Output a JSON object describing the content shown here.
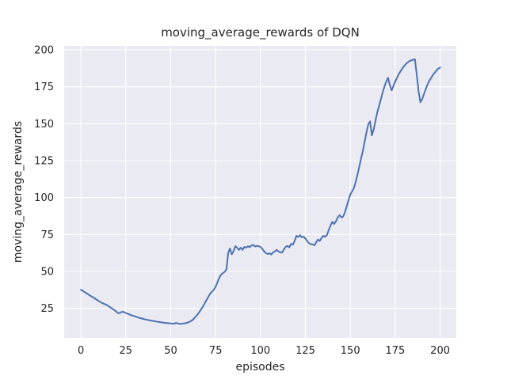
{
  "chart_data": {
    "type": "line",
    "title": "moving_average_rewards of DQN",
    "xlabel": "episodes",
    "ylabel": "moving_average_rewards",
    "x_ticks": [
      0,
      25,
      50,
      75,
      100,
      125,
      150,
      175,
      200
    ],
    "y_ticks": [
      25,
      50,
      75,
      100,
      125,
      150,
      175,
      200
    ],
    "xlim": [
      -9.3,
      209.0
    ],
    "ylim": [
      5.0,
      202.7
    ],
    "grid": true,
    "legend_position": "none",
    "style": {
      "line_color": "#4c72b0",
      "plot_bg": "#eaeaf2",
      "grid_color": "#ffffff",
      "text_color": "#262626",
      "fig_bg": "#ffffff"
    },
    "series": [
      {
        "name": "DQN moving average rewards",
        "x": [
          0,
          1,
          2,
          3,
          4,
          5,
          6,
          7,
          8,
          9,
          10,
          11,
          12,
          13,
          14,
          15,
          16,
          17,
          18,
          19,
          20,
          21,
          22,
          23,
          24,
          25,
          26,
          27,
          28,
          29,
          30,
          31,
          32,
          33,
          34,
          35,
          36,
          37,
          38,
          39,
          40,
          41,
          42,
          43,
          44,
          45,
          46,
          47,
          48,
          49,
          50,
          51,
          52,
          53,
          54,
          55,
          56,
          57,
          58,
          59,
          60,
          61,
          62,
          63,
          64,
          65,
          66,
          67,
          68,
          69,
          70,
          71,
          72,
          73,
          74,
          75,
          76,
          77,
          78,
          79,
          80,
          81,
          82,
          83,
          84,
          85,
          86,
          87,
          88,
          89,
          90,
          91,
          92,
          93,
          94,
          95,
          96,
          97,
          98,
          99,
          100,
          101,
          102,
          103,
          104,
          105,
          106,
          107,
          108,
          109,
          110,
          111,
          112,
          113,
          114,
          115,
          116,
          117,
          118,
          119,
          120,
          121,
          122,
          123,
          124,
          125,
          126,
          127,
          128,
          129,
          130,
          131,
          132,
          133,
          134,
          135,
          136,
          137,
          138,
          139,
          140,
          141,
          142,
          143,
          144,
          145,
          146,
          147,
          148,
          149,
          150,
          151,
          152,
          153,
          154,
          155,
          156,
          157,
          158,
          159,
          160,
          161,
          162,
          163,
          164,
          165,
          166,
          167,
          168,
          169,
          170,
          171,
          172,
          173,
          174,
          175,
          176,
          177,
          178,
          179,
          180,
          181,
          182,
          183,
          184,
          185,
          186,
          187,
          188,
          189,
          190,
          191,
          192,
          193,
          194,
          195,
          196,
          197,
          198,
          199,
          200
        ],
        "y": [
          37.6,
          36.9,
          36.1,
          35.3,
          34.5,
          33.7,
          33.0,
          32.3,
          31.5,
          30.7,
          29.9,
          29.2,
          28.5,
          28.0,
          27.5,
          26.8,
          26.0,
          25.2,
          24.4,
          23.5,
          22.5,
          21.6,
          22.2,
          22.7,
          22.4,
          21.9,
          21.4,
          20.9,
          20.4,
          20.0,
          19.6,
          19.2,
          18.8,
          18.4,
          18.1,
          17.8,
          17.5,
          17.2,
          17.0,
          16.7,
          16.5,
          16.3,
          16.1,
          15.9,
          15.7,
          15.5,
          15.3,
          15.1,
          15.0,
          14.9,
          14.8,
          14.7,
          14.6,
          15.1,
          14.8,
          14.5,
          14.6,
          14.7,
          14.9,
          15.2,
          15.6,
          16.2,
          17.0,
          18.1,
          19.4,
          20.9,
          22.6,
          24.4,
          26.4,
          28.5,
          30.7,
          32.9,
          34.9,
          36.3,
          37.6,
          39.6,
          42.6,
          45.5,
          47.7,
          48.8,
          49.7,
          51.2,
          62.4,
          65.6,
          61.6,
          63.7,
          67.1,
          66.0,
          64.6,
          66.1,
          64.6,
          66.6,
          66.1,
          67.1,
          66.4,
          67.6,
          67.9,
          66.9,
          67.3,
          67.1,
          66.6,
          65.3,
          63.6,
          62.4,
          61.8,
          62.3,
          61.4,
          62.9,
          63.6,
          64.6,
          63.5,
          63.0,
          62.7,
          64.9,
          66.6,
          67.3,
          66.3,
          68.6,
          68.1,
          70.6,
          74.1,
          73.3,
          74.6,
          73.1,
          73.6,
          72.3,
          70.6,
          69.1,
          68.5,
          68.3,
          67.7,
          69.6,
          71.6,
          70.7,
          72.6,
          74.1,
          73.4,
          74.6,
          78.1,
          81.1,
          83.6,
          82.1,
          83.9,
          86.6,
          88.1,
          86.6,
          87.1,
          90.1,
          94.1,
          98.1,
          102.1,
          104.2,
          106.6,
          110.6,
          115.6,
          121.1,
          126.6,
          131.6,
          138.1,
          144.1,
          149.6,
          151.6,
          142.1,
          146.1,
          152.1,
          157.6,
          162.1,
          166.6,
          171.1,
          175.1,
          178.6,
          181.1,
          176.1,
          172.6,
          175.6,
          178.6,
          181.1,
          183.6,
          185.6,
          187.6,
          189.1,
          190.6,
          191.6,
          192.4,
          192.9,
          193.3,
          193.6,
          183.1,
          172.1,
          164.6,
          166.6,
          170.1,
          173.6,
          176.6,
          179.1,
          181.1,
          183.1,
          184.6,
          186.1,
          187.3,
          188.1
        ]
      }
    ]
  }
}
